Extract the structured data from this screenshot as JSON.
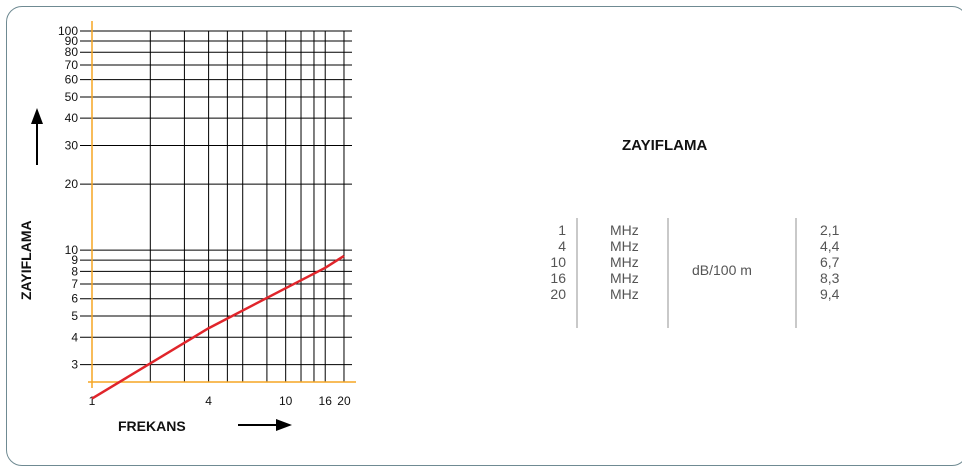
{
  "chart_data": {
    "type": "line",
    "xscale": "log",
    "yscale": "log",
    "xlim": [
      1,
      22
    ],
    "ylim": [
      2.5,
      100
    ],
    "x_ticks": [
      1,
      4,
      10,
      16,
      20
    ],
    "y_ticks": [
      3,
      4,
      5,
      6,
      7,
      8,
      9,
      10,
      20,
      30,
      40,
      50,
      60,
      70,
      80,
      90,
      100
    ],
    "xlabel": "FREKANS",
    "ylabel": "ZAYIFLAMA",
    "grid": true,
    "series": [
      {
        "x": [
          1,
          4,
          10,
          16,
          20
        ],
        "y": [
          2.1,
          4.4,
          6.7,
          8.3,
          9.4
        ]
      }
    ],
    "colors": {
      "line": "#e0252b",
      "axis": "#f5a623",
      "grid": "#000000"
    }
  },
  "table": {
    "title": "ZAYIFLAMA",
    "freqs": [
      "1",
      "4",
      "10",
      "16",
      "20"
    ],
    "unit": "MHz",
    "db_unit": "dB/100 m",
    "values": [
      "2,1",
      "4,4",
      "6,7",
      "8,3",
      "9,4"
    ]
  }
}
